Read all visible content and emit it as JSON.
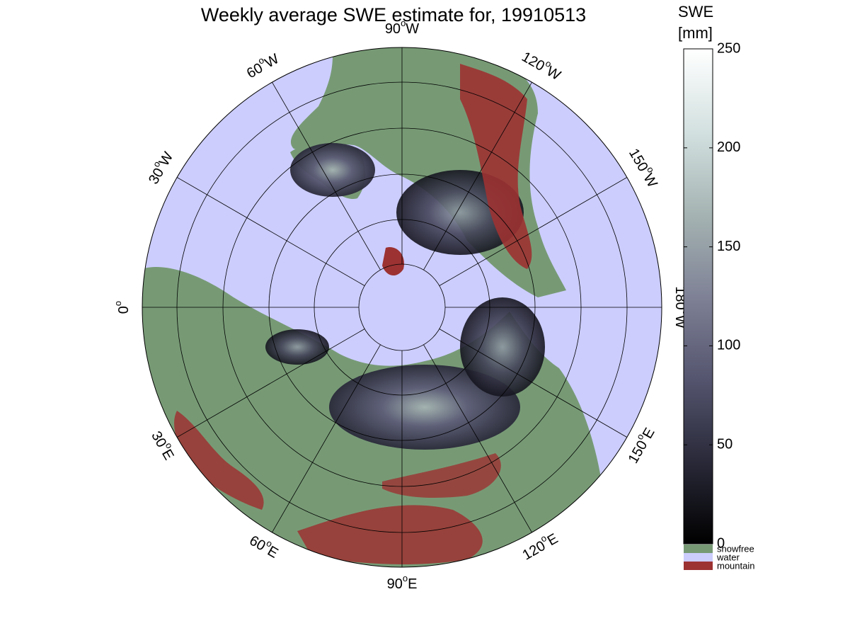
{
  "title": "Weekly average SWE estimate for, 19910513",
  "colorbar": {
    "label_line1": "SWE",
    "label_line2": "[mm]",
    "min": 0,
    "max": 250,
    "ticks": [
      "0",
      "50",
      "100",
      "150",
      "200",
      "250"
    ],
    "gradient": [
      "#000000",
      "#2a2a3a",
      "#54546e",
      "#7f8296",
      "#a6b5b3",
      "#d2e0df",
      "#ffffff"
    ]
  },
  "legend": [
    {
      "label": "snowfree",
      "color": "#779a75"
    },
    {
      "label": "water",
      "color": "#cccdfd"
    },
    {
      "label": "mountain",
      "color": "#9c3232"
    }
  ],
  "map": {
    "projection": "north polar stereographic",
    "water_color": "#cccdfd",
    "land_color": "#779a75",
    "mountain_color": "#9c3232",
    "longitude_labels": [
      {
        "deg": "0",
        "hemi": ""
      },
      {
        "deg": "30",
        "hemi": "W"
      },
      {
        "deg": "60",
        "hemi": "W"
      },
      {
        "deg": "90",
        "hemi": "W"
      },
      {
        "deg": "120",
        "hemi": "W"
      },
      {
        "deg": "150",
        "hemi": "W"
      },
      {
        "deg": "180",
        "hemi": "W"
      },
      {
        "deg": "150",
        "hemi": "E"
      },
      {
        "deg": "120",
        "hemi": "E"
      },
      {
        "deg": "90",
        "hemi": "E"
      },
      {
        "deg": "60",
        "hemi": "E"
      },
      {
        "deg": "30",
        "hemi": "E"
      }
    ]
  }
}
